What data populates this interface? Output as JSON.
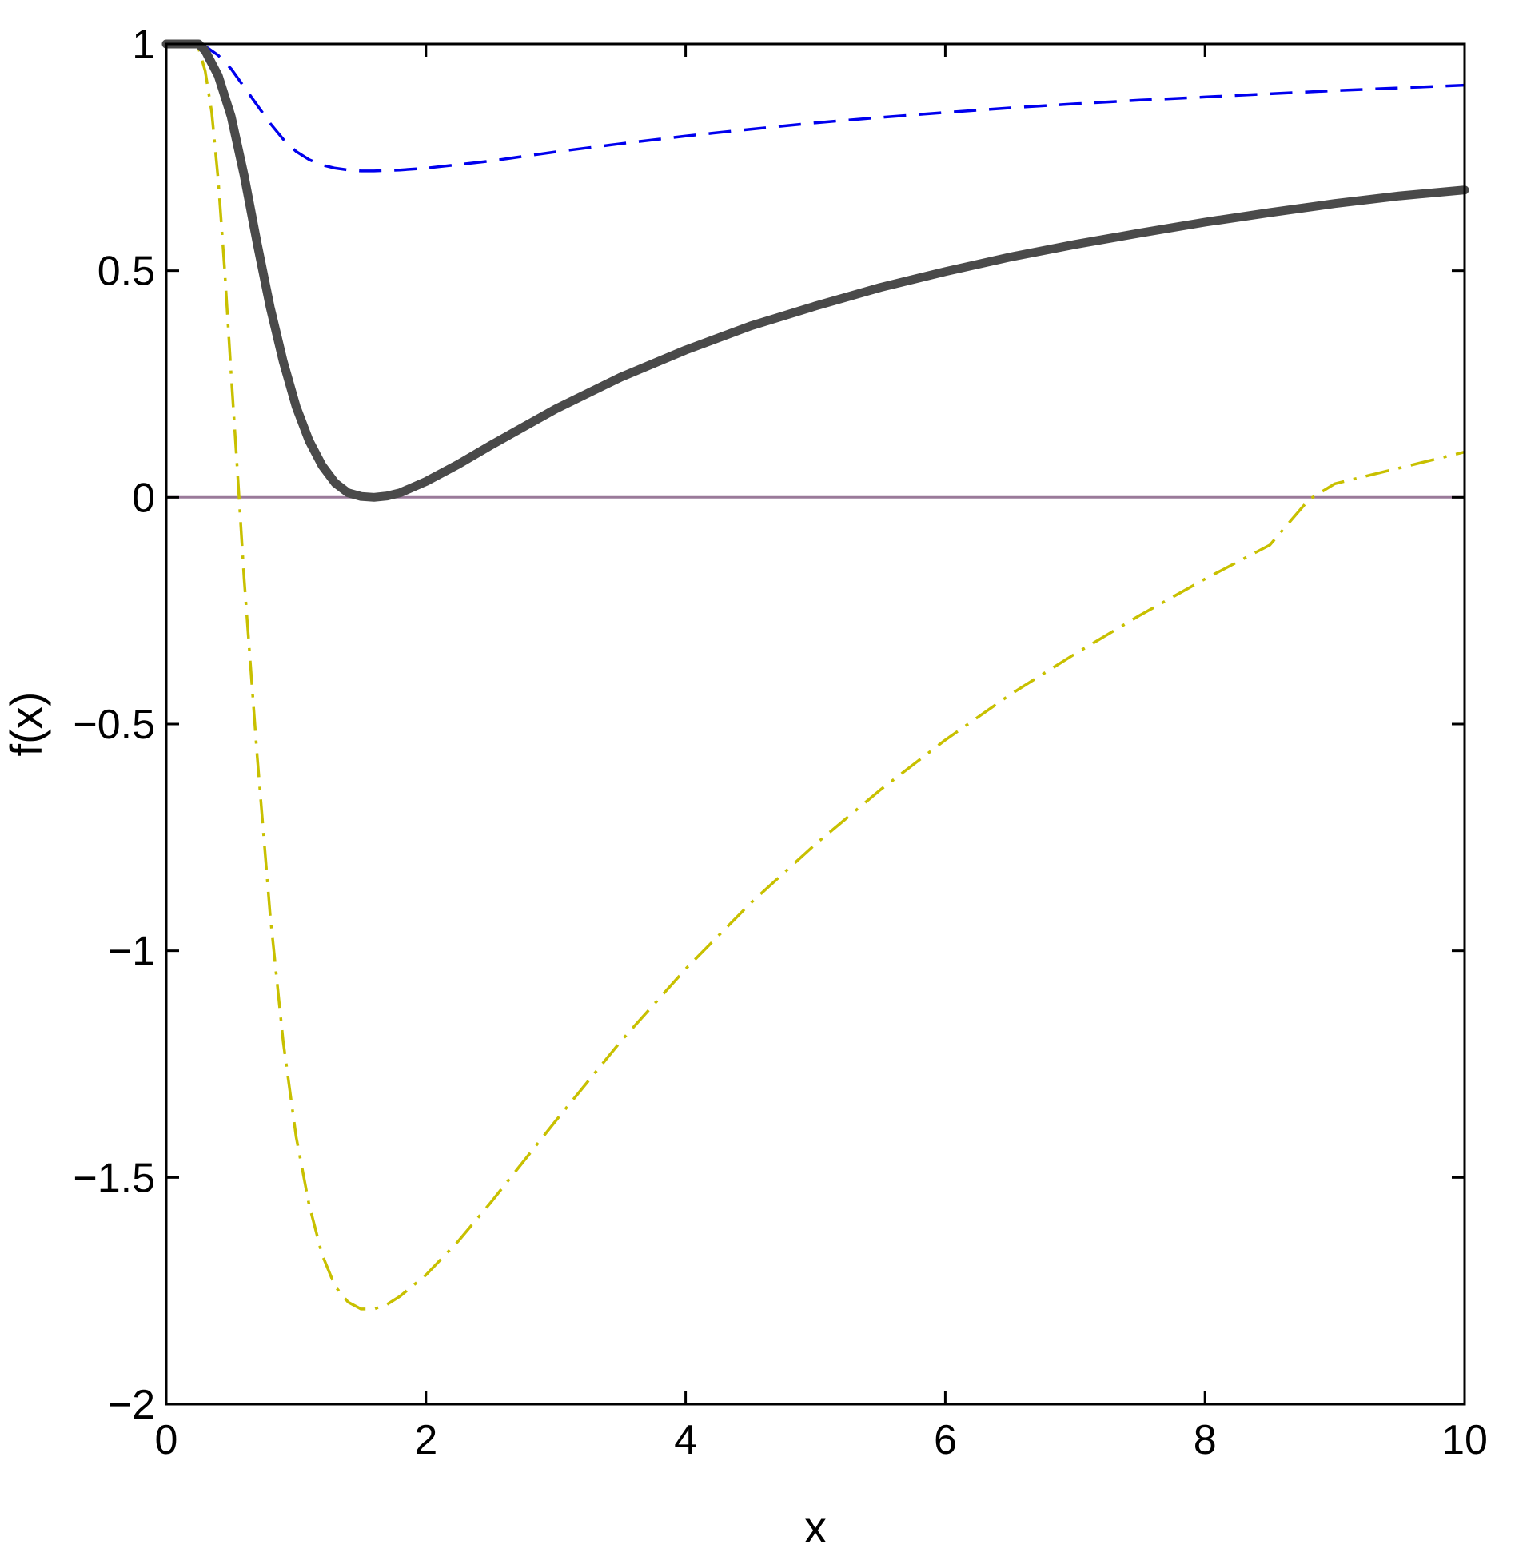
{
  "chart_data": {
    "type": "line",
    "title": "",
    "xlabel": "x",
    "ylabel": "f(x)",
    "xlim": [
      0,
      10
    ],
    "ylim": [
      -2,
      1
    ],
    "xticks": [
      0,
      2,
      4,
      6,
      8,
      10
    ],
    "xtick_labels": [
      "0",
      "2",
      "4",
      "6",
      "8",
      "10"
    ],
    "yticks": [
      1,
      0.5,
      0,
      -0.5,
      -1,
      -1.5,
      -2
    ],
    "ytick_labels": [
      "1",
      "0.5",
      "0",
      "−0.5",
      "−1",
      "−1.5",
      "−2"
    ],
    "grid": false,
    "legend": "none",
    "series": [
      {
        "color": "#4a4a4a",
        "style": "solid-thick",
        "points": [
          [
            0,
            1
          ],
          [
            0.25,
            1
          ],
          [
            0.3,
            0.985
          ],
          [
            0.4,
            0.93
          ],
          [
            0.5,
            0.84
          ],
          [
            0.6,
            0.71
          ],
          [
            0.7,
            0.56
          ],
          [
            0.8,
            0.42
          ],
          [
            0.9,
            0.3
          ],
          [
            1.0,
            0.2
          ],
          [
            1.1,
            0.125
          ],
          [
            1.2,
            0.07
          ],
          [
            1.3,
            0.032
          ],
          [
            1.4,
            0.01
          ],
          [
            1.5,
            0.002
          ],
          [
            1.6,
            0
          ],
          [
            1.7,
            0.003
          ],
          [
            1.8,
            0.01
          ],
          [
            2.0,
            0.035
          ],
          [
            2.25,
            0.073
          ],
          [
            2.5,
            0.115
          ],
          [
            3.0,
            0.195
          ],
          [
            3.5,
            0.265
          ],
          [
            4.0,
            0.325
          ],
          [
            4.5,
            0.378
          ],
          [
            5.0,
            0.422
          ],
          [
            5.5,
            0.463
          ],
          [
            6.0,
            0.498
          ],
          [
            6.5,
            0.53
          ],
          [
            7.0,
            0.558
          ],
          [
            7.5,
            0.583
          ],
          [
            8.0,
            0.607
          ],
          [
            8.5,
            0.628
          ],
          [
            9.0,
            0.648
          ],
          [
            9.5,
            0.665
          ],
          [
            10.0,
            0.678
          ]
        ]
      },
      {
        "color": "#0000ee",
        "style": "dashed",
        "points": [
          [
            0,
            1
          ],
          [
            0.25,
            1
          ],
          [
            0.3,
            0.995
          ],
          [
            0.4,
            0.975
          ],
          [
            0.5,
            0.945
          ],
          [
            0.6,
            0.905
          ],
          [
            0.7,
            0.865
          ],
          [
            0.8,
            0.825
          ],
          [
            0.9,
            0.79
          ],
          [
            1.0,
            0.763
          ],
          [
            1.1,
            0.745
          ],
          [
            1.2,
            0.733
          ],
          [
            1.3,
            0.726
          ],
          [
            1.4,
            0.722
          ],
          [
            1.5,
            0.72
          ],
          [
            1.6,
            0.72
          ],
          [
            1.8,
            0.722
          ],
          [
            2.0,
            0.726
          ],
          [
            2.5,
            0.742
          ],
          [
            3.0,
            0.762
          ],
          [
            3.5,
            0.78
          ],
          [
            4.0,
            0.797
          ],
          [
            4.5,
            0.812
          ],
          [
            5.0,
            0.826
          ],
          [
            5.5,
            0.838
          ],
          [
            6.0,
            0.849
          ],
          [
            6.5,
            0.859
          ],
          [
            7.0,
            0.868
          ],
          [
            7.5,
            0.876
          ],
          [
            8.0,
            0.883
          ],
          [
            8.5,
            0.89
          ],
          [
            9.0,
            0.897
          ],
          [
            9.5,
            0.903
          ],
          [
            10.0,
            0.909
          ]
        ]
      },
      {
        "color": "#c8c000",
        "style": "dash-dot",
        "points": [
          [
            0,
            1
          ],
          [
            0.2,
            1
          ],
          [
            0.25,
            0.99
          ],
          [
            0.3,
            0.94
          ],
          [
            0.35,
            0.85
          ],
          [
            0.4,
            0.7
          ],
          [
            0.45,
            0.5
          ],
          [
            0.5,
            0.27
          ],
          [
            0.55,
            0.05
          ],
          [
            0.6,
            -0.18
          ],
          [
            0.7,
            -0.57
          ],
          [
            0.8,
            -0.92
          ],
          [
            0.9,
            -1.2
          ],
          [
            1.0,
            -1.41
          ],
          [
            1.1,
            -1.56
          ],
          [
            1.2,
            -1.67
          ],
          [
            1.3,
            -1.74
          ],
          [
            1.4,
            -1.775
          ],
          [
            1.5,
            -1.79
          ],
          [
            1.6,
            -1.79
          ],
          [
            1.7,
            -1.78
          ],
          [
            1.8,
            -1.762
          ],
          [
            2.0,
            -1.715
          ],
          [
            2.25,
            -1.64
          ],
          [
            2.5,
            -1.555
          ],
          [
            3.0,
            -1.375
          ],
          [
            3.5,
            -1.2
          ],
          [
            4.0,
            -1.04
          ],
          [
            4.5,
            -0.895
          ],
          [
            5.0,
            -0.765
          ],
          [
            5.5,
            -0.645
          ],
          [
            6.0,
            -0.535
          ],
          [
            6.5,
            -0.435
          ],
          [
            7.0,
            -0.345
          ],
          [
            7.5,
            -0.26
          ],
          [
            8.0,
            -0.18
          ],
          [
            8.5,
            -0.105
          ],
          [
            8.8,
            -0.005
          ],
          [
            9.0,
            0.03
          ],
          [
            9.5,
            0.065
          ],
          [
            10.0,
            0.1
          ]
        ]
      },
      {
        "color": "#9a7a9a",
        "style": "solid-thin",
        "points": [
          [
            0,
            0
          ],
          [
            10,
            0
          ]
        ]
      }
    ]
  }
}
